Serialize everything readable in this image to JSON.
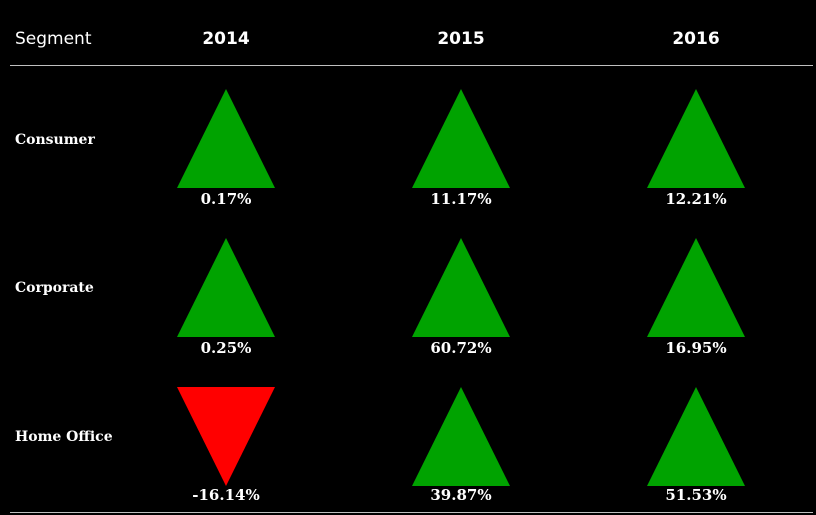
{
  "header": {
    "segment_label": "Segment",
    "years": [
      "2014",
      "2015",
      "2016"
    ]
  },
  "colors": {
    "up": "#00a300",
    "down": "#ff0000",
    "background": "#000000",
    "text": "#ffffff"
  },
  "chart_data": {
    "type": "table",
    "columns": [
      "2014",
      "2015",
      "2016"
    ],
    "rows": [
      {
        "segment": "Consumer",
        "values": [
          "0.17%",
          "11.17%",
          "12.21%"
        ],
        "direction": [
          "up",
          "up",
          "up"
        ]
      },
      {
        "segment": "Corporate",
        "values": [
          "0.25%",
          "60.72%",
          "16.95%"
        ],
        "direction": [
          "up",
          "up",
          "up"
        ]
      },
      {
        "segment": "Home Office",
        "values": [
          "-16.14%",
          "39.87%",
          "51.53%"
        ],
        "direction": [
          "down",
          "up",
          "up"
        ]
      }
    ]
  }
}
